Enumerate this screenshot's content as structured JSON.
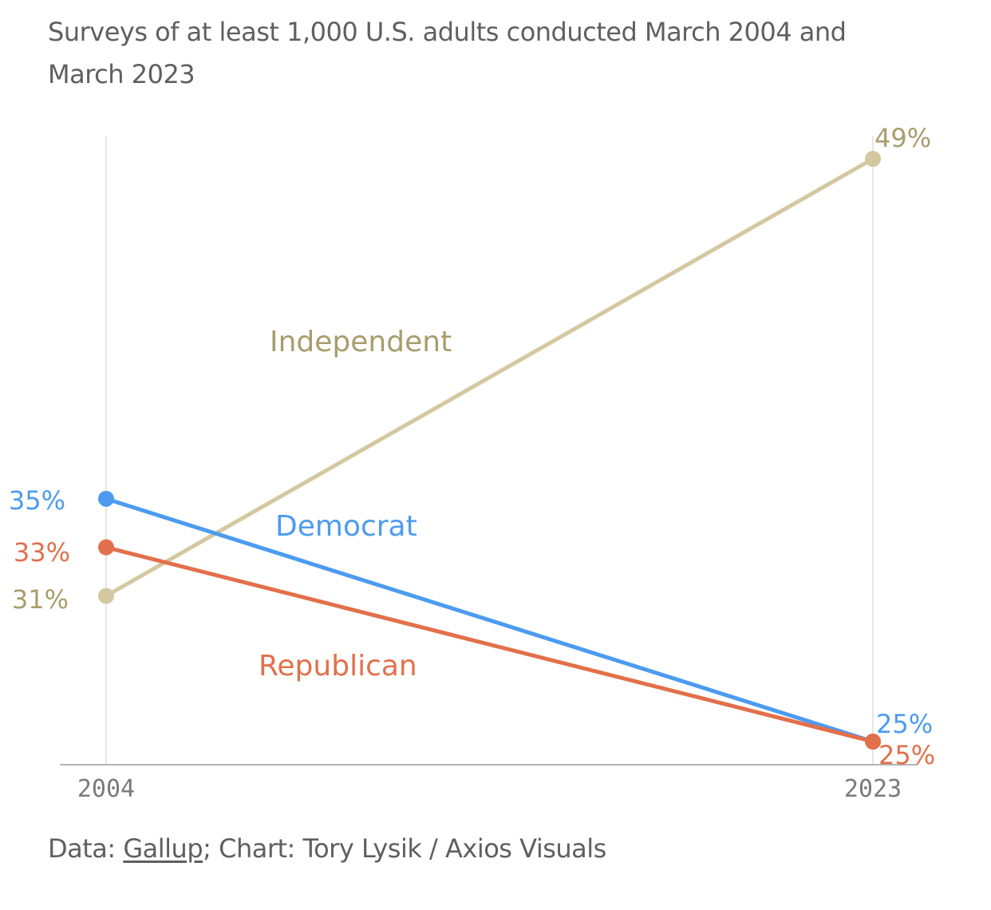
{
  "subtitle": "Surveys of at least 1,000 U.S. adults conducted March 2004 and March 2023",
  "footer": {
    "data_prefix": "Data: ",
    "source_link": "Gallup",
    "rest": "; Chart: Tory Lysik / Axios Visuals"
  },
  "colors": {
    "Independent": "#d3c8a0",
    "Democrat": "#4c9bf0",
    "Republican": "#e2704b",
    "independent_text": "#a89c6c"
  },
  "chart_data": {
    "type": "line",
    "x": [
      "2004",
      "2023"
    ],
    "series": [
      {
        "name": "Independent",
        "values": [
          31,
          49
        ],
        "labels": [
          "31%",
          "49%"
        ]
      },
      {
        "name": "Democrat",
        "values": [
          35,
          25
        ],
        "labels": [
          "35%",
          "25%"
        ]
      },
      {
        "name": "Republican",
        "values": [
          33,
          25
        ],
        "labels": [
          "33%",
          "25%"
        ]
      }
    ],
    "ylim": [
      24,
      50
    ],
    "grid": "vertical lines at each year",
    "legend": "inline labels next to lines"
  }
}
